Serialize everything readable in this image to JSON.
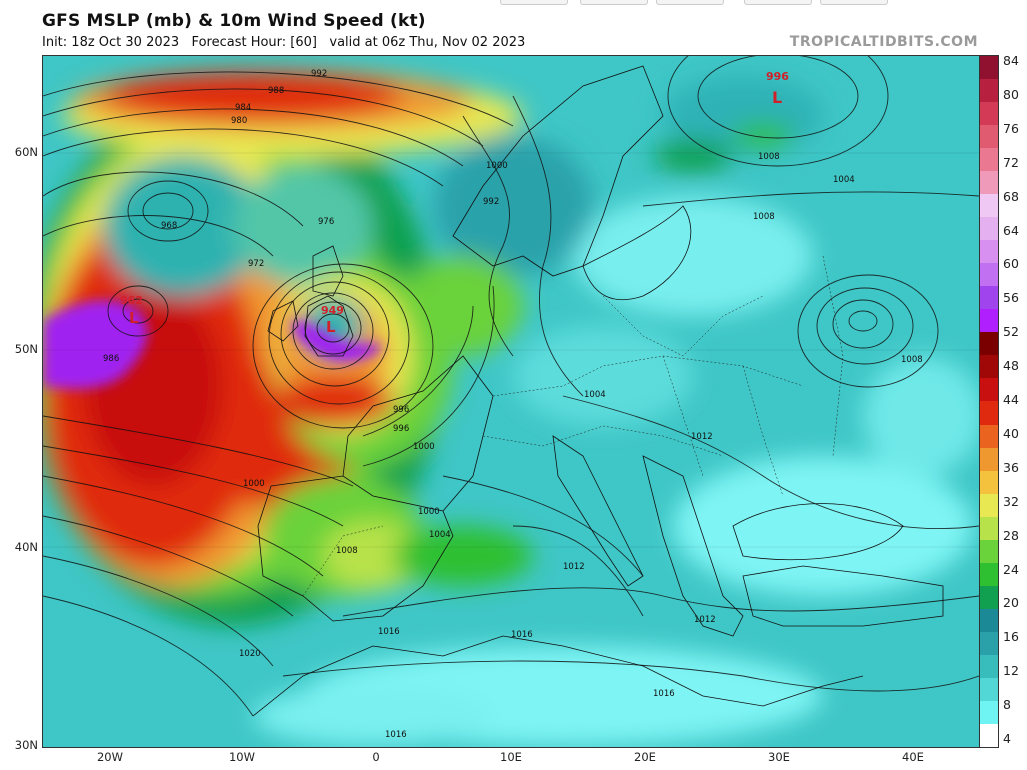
{
  "header": {
    "title": "GFS MSLP (mb) & 10m Wind Speed (kt)",
    "subtitle": "Init: 18z Oct 30 2023   Forecast Hour: [60]   valid at 06z Thu, Nov 02 2023",
    "brand": "TROPICALTIDBITS.COM"
  },
  "axes": {
    "lat_labels": [
      "60N",
      "50N",
      "40N",
      "30N"
    ],
    "lon_labels": [
      "20W",
      "10W",
      "0",
      "10E",
      "20E",
      "30E",
      "40E"
    ]
  },
  "colorbar": {
    "unit": "kt",
    "labels": [
      "84",
      "80",
      "76",
      "72",
      "68",
      "64",
      "60",
      "56",
      "52",
      "48",
      "44",
      "40",
      "36",
      "32",
      "28",
      "24",
      "20",
      "16",
      "12",
      "8",
      "4"
    ],
    "colors": [
      "#ffffff",
      "#6ff3f3",
      "#52d6d6",
      "#39bcbc",
      "#2aa0a8",
      "#1b8a96",
      "#10a050",
      "#2ec030",
      "#6ad23a",
      "#b8e24a",
      "#e8e852",
      "#f4c23c",
      "#f09830",
      "#ea6420",
      "#e02a10",
      "#c81010",
      "#a00808",
      "#7a0000",
      "#b020ff",
      "#a044ee",
      "#c070f0",
      "#d890f0",
      "#e4b0f0",
      "#f0c8f4",
      "#ee9ab8",
      "#ea7890",
      "#e05a70",
      "#d23a55",
      "#b82040",
      "#901030"
    ]
  },
  "map": {
    "pressure_labels": [
      "992",
      "988",
      "984",
      "980",
      "968",
      "976",
      "972",
      "962",
      "949",
      "986",
      "1000",
      "992",
      "996",
      "1000",
      "1004",
      "1008",
      "1004",
      "1008",
      "1012",
      "1016",
      "1016",
      "1020",
      "1016",
      "1016",
      "1012",
      "1004",
      "1008",
      "1012",
      "1004",
      "1000",
      "1008",
      "996",
      "1000"
    ],
    "lows": [
      {
        "label": "962",
        "marker": "L"
      },
      {
        "label": "949",
        "marker": "L"
      },
      {
        "label": "996",
        "marker": "L"
      }
    ]
  }
}
